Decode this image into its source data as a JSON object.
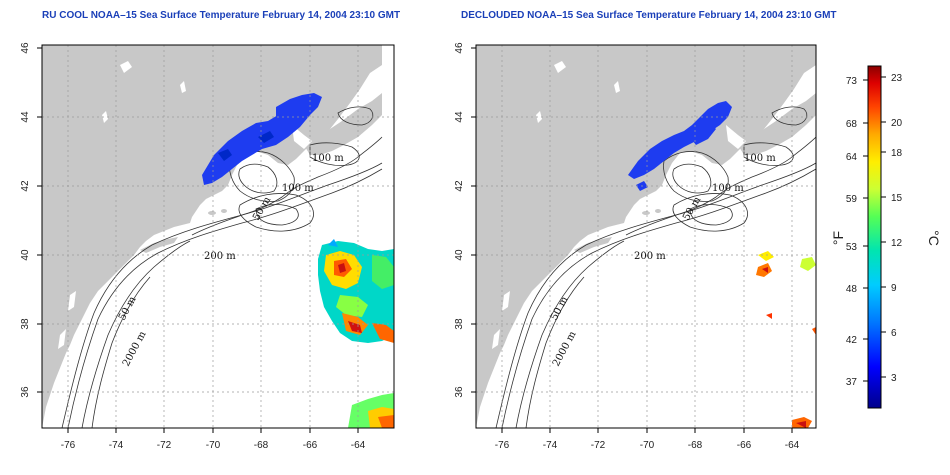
{
  "maps": [
    {
      "title": "RU COOL NOAA–15 Sea Surface Temperature February 14, 2004 23:10 GMT",
      "x_ticks": [
        "-76",
        "-74",
        "-72",
        "-70",
        "-68",
        "-66",
        "-64"
      ],
      "y_ticks": [
        "36",
        "38",
        "40",
        "42",
        "44",
        "46"
      ],
      "contour_labels": [
        "100 m",
        "100 m",
        "50 m",
        "200 m",
        "50 m",
        "2000 m"
      ]
    },
    {
      "title": "DECLOUDED NOAA–15 Sea Surface Temperature February 14, 2004 23:10 GMT",
      "x_ticks": [
        "-76",
        "-74",
        "-72",
        "-70",
        "-68",
        "-66",
        "-64"
      ],
      "y_ticks": [
        "36",
        "38",
        "40",
        "42",
        "44",
        "46"
      ],
      "contour_labels": [
        "100 m",
        "100 m",
        "50 m",
        "200 m",
        "50 m",
        "2000 m"
      ]
    }
  ],
  "colorbar": {
    "fahrenheit_unit": "°F",
    "celsius_unit": "°C",
    "fahrenheit_ticks": [
      "73",
      "68",
      "64",
      "59",
      "53",
      "48",
      "42",
      "37"
    ],
    "celsius_ticks": [
      "23",
      "20",
      "18",
      "15",
      "12",
      "9",
      "6",
      "3"
    ],
    "colors": [
      "#00008b",
      "#0000ff",
      "#0066ff",
      "#00ccff",
      "#00e5cc",
      "#33ff66",
      "#ccff33",
      "#ffee00",
      "#ffaa00",
      "#ff5500",
      "#dd0000",
      "#990000"
    ]
  },
  "colors": {
    "land": "#c8c8c8",
    "ocean": "#ffffff",
    "title": "#1a3fb8",
    "cold_water": "#1e3cf0"
  }
}
